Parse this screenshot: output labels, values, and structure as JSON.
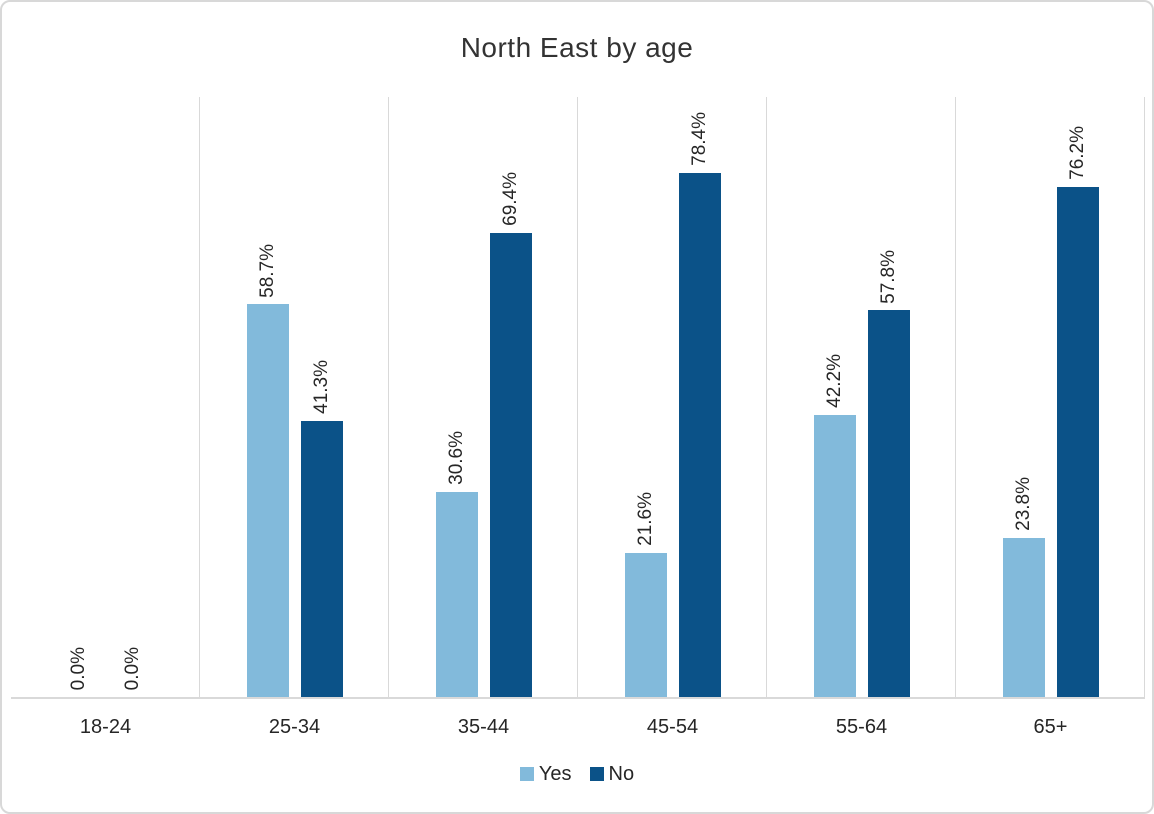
{
  "chart_data": {
    "type": "bar",
    "title": "North East by age",
    "categories": [
      "18-24",
      "25-34",
      "35-44",
      "45-54",
      "55-64",
      "65+"
    ],
    "series": [
      {
        "name": "Yes",
        "color": "#82BADB",
        "values": [
          0.0,
          58.7,
          30.6,
          21.6,
          42.2,
          23.8
        ],
        "labels": [
          "0.0%",
          "58.7%",
          "30.6%",
          "21.6%",
          "42.2%",
          "23.8%"
        ]
      },
      {
        "name": "No",
        "color": "#0B5288",
        "values": [
          0.0,
          41.3,
          69.4,
          78.4,
          57.8,
          76.2
        ],
        "labels": [
          "0.0%",
          "41.3%",
          "69.4%",
          "78.4%",
          "57.8%",
          "76.2%"
        ]
      }
    ],
    "ylim": [
      0,
      90
    ],
    "xlabel": "",
    "ylabel": "",
    "grid": "vertical-category-separators",
    "legend_position": "bottom",
    "value_label_rotation": -90
  },
  "styles": {
    "background": "#FFFFFF",
    "border_color": "#D8D8D8",
    "grid_color": "#D9D9D9",
    "axis_color": "#D9D9D9",
    "title_color": "#333333",
    "label_color": "#262626"
  }
}
